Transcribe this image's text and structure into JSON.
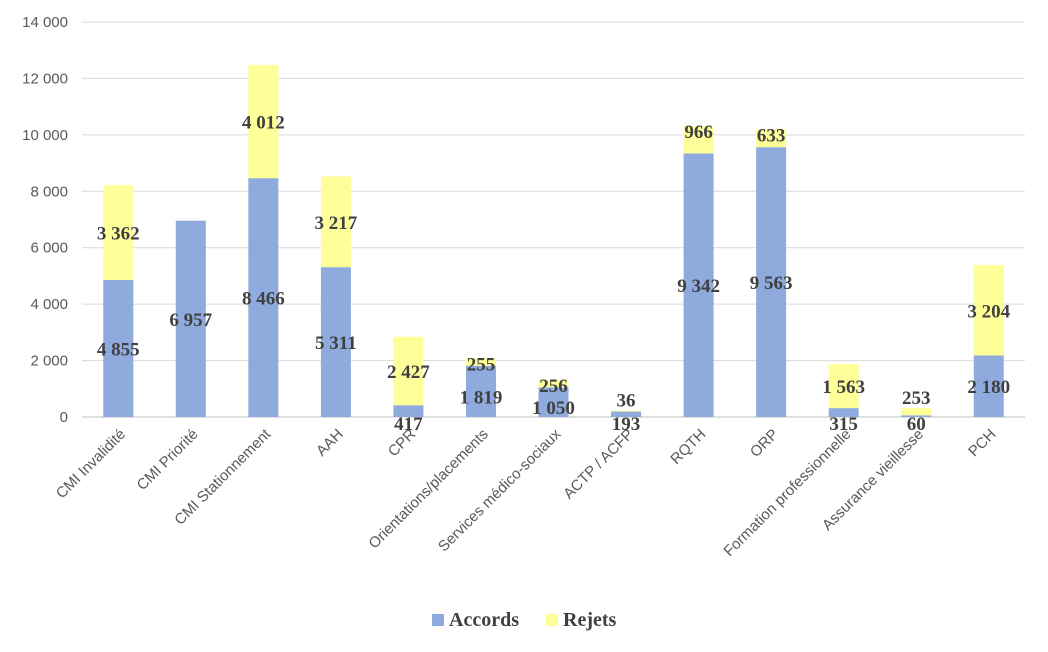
{
  "chart_data": {
    "type": "bar",
    "stacked": true,
    "title": "",
    "xlabel": "",
    "ylabel": "",
    "ylim": [
      0,
      14000
    ],
    "yticks": [
      0,
      2000,
      4000,
      6000,
      8000,
      10000,
      12000,
      14000
    ],
    "ytick_labels": [
      "0",
      "2 000",
      "4 000",
      "6 000",
      "8 000",
      "10 000",
      "12 000",
      "14 000"
    ],
    "grid": true,
    "legend_position": "bottom",
    "categories": [
      "CMI Invalidité",
      "CMI Priorité",
      "CMI Stationnement",
      "AAH",
      "CPR",
      "Orientations/placements",
      "Services médico-sociaux",
      "ACTP / ACFP",
      "RQTH",
      "ORP",
      "Formation professionnelle",
      "Assurance vieillesse",
      "PCH"
    ],
    "series": [
      {
        "name": "Accords",
        "color": "#8faadc",
        "values": [
          4855,
          6957,
          8466,
          5311,
          417,
          1819,
          1050,
          193,
          9342,
          9563,
          315,
          60,
          2180
        ],
        "labels": [
          "4 855",
          "6 957",
          "8 466",
          "5 311",
          "417",
          "1 819",
          "1 050",
          "193",
          "9 342",
          "9 563",
          "315",
          "60",
          "2 180"
        ]
      },
      {
        "name": "Rejets",
        "color": "#ffff99",
        "values": [
          3362,
          null,
          4012,
          3217,
          2427,
          255,
          256,
          36,
          966,
          633,
          1563,
          253,
          3204
        ],
        "labels": [
          "3 362",
          "",
          "4 012",
          "3 217",
          "2 427",
          "255",
          "256",
          "36",
          "966",
          "633",
          "1 563",
          "253",
          "3 204"
        ]
      }
    ]
  }
}
